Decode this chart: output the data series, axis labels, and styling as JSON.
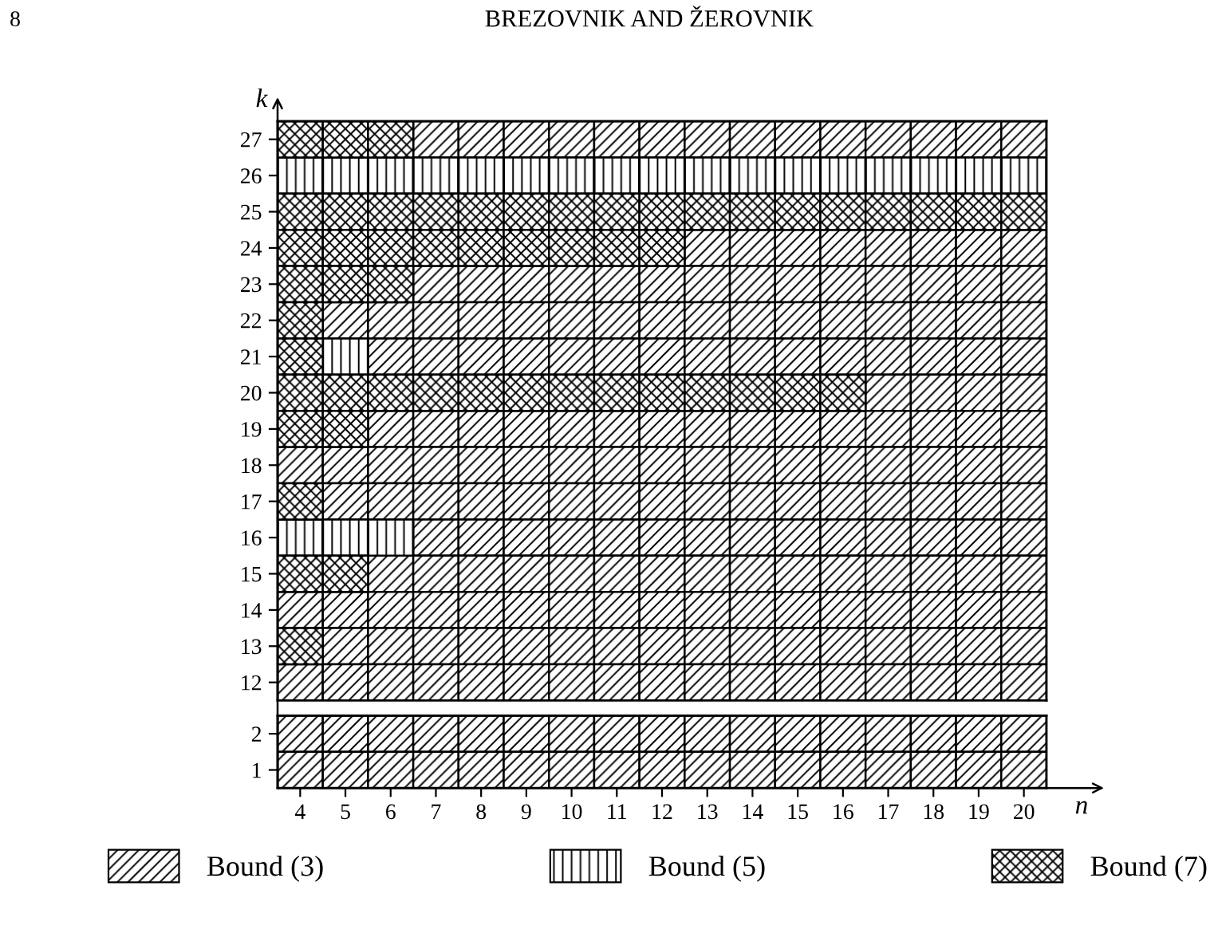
{
  "chart_data": [
    {
      "type": "scatter",
      "marker": "square",
      "ylabel": "k",
      "annotations": [
        "8",
        "BREZOVNIK AND ŽEROVNIK"
      ],
      "xlim": [
        3.5,
        20.5
      ],
      "xticks": [
        4,
        5,
        6,
        7,
        8,
        9,
        10,
        11,
        12,
        13,
        14,
        15,
        16,
        17,
        18,
        19,
        20
      ],
      "ylim": [
        11.5,
        27.5
      ],
      "yticks": [
        12,
        13,
        14,
        15,
        16,
        17,
        18,
        19,
        20,
        21,
        22,
        23,
        24,
        25,
        26,
        27
      ],
      "tick_labels": "y",
      "series": [
        {
          "color": "#000000",
          "x": [
            7,
            8,
            9,
            10,
            11,
            12,
            13,
            14,
            15,
            16,
            17,
            18,
            19,
            20,
            13,
            14,
            15,
            16,
            17,
            18,
            19,
            20,
            7,
            8,
            9,
            10,
            11,
            12,
            13,
            14,
            15,
            16,
            17,
            18,
            19,
            20,
            5,
            6,
            7,
            8,
            9,
            10,
            11,
            12,
            13,
            14,
            15,
            16,
            17,
            18,
            19,
            20,
            6,
            7,
            8,
            9,
            10,
            11,
            12,
            13,
            14,
            15,
            16,
            17,
            18,
            19,
            20,
            17,
            18,
            19,
            20,
            6,
            7,
            8,
            9,
            10,
            11,
            12,
            13,
            14,
            15,
            16,
            17,
            18,
            19,
            20,
            4,
            5,
            6,
            7,
            8,
            9,
            10,
            11,
            12,
            13,
            14,
            15,
            16,
            17,
            18,
            19,
            20,
            5,
            6,
            7,
            8,
            9,
            10,
            11,
            12,
            13,
            14,
            15,
            16,
            17,
            18,
            19,
            20,
            7,
            8,
            9,
            10,
            11,
            12,
            13,
            14,
            15,
            16,
            17,
            18,
            19,
            20,
            6,
            7,
            8,
            9,
            10,
            11,
            12,
            13,
            14,
            15,
            16,
            17,
            18,
            19,
            20,
            4,
            5,
            6,
            7,
            8,
            9,
            10,
            11,
            12,
            13,
            14,
            15,
            16,
            17,
            18,
            19,
            20,
            5,
            6,
            7,
            8,
            9,
            10,
            11,
            12,
            13,
            14,
            15,
            16,
            17,
            18,
            19,
            20,
            4,
            5,
            6,
            7,
            8,
            9,
            10,
            11,
            12,
            13,
            14,
            15,
            16,
            17,
            18,
            19,
            20
          ],
          "values": [
            27,
            27,
            27,
            27,
            27,
            27,
            27,
            27,
            27,
            27,
            27,
            27,
            27,
            27,
            24,
            24,
            24,
            24,
            24,
            24,
            24,
            24,
            23,
            23,
            23,
            23,
            23,
            23,
            23,
            23,
            23,
            23,
            23,
            23,
            23,
            23,
            22,
            22,
            22,
            22,
            22,
            22,
            22,
            22,
            22,
            22,
            22,
            22,
            22,
            22,
            22,
            22,
            21,
            21,
            21,
            21,
            21,
            21,
            21,
            21,
            21,
            21,
            21,
            21,
            21,
            21,
            21,
            20,
            20,
            20,
            20,
            19,
            19,
            19,
            19,
            19,
            19,
            19,
            19,
            19,
            19,
            19,
            19,
            19,
            19,
            19,
            18,
            18,
            18,
            18,
            18,
            18,
            18,
            18,
            18,
            18,
            18,
            18,
            18,
            18,
            18,
            18,
            18,
            17,
            17,
            17,
            17,
            17,
            17,
            17,
            17,
            17,
            17,
            17,
            17,
            17,
            17,
            17,
            17,
            16,
            16,
            16,
            16,
            16,
            16,
            16,
            16,
            16,
            16,
            16,
            16,
            16,
            16,
            15,
            15,
            15,
            15,
            15,
            15,
            15,
            15,
            15,
            15,
            15,
            15,
            15,
            15,
            15,
            14,
            14,
            14,
            14,
            14,
            14,
            14,
            14,
            14,
            14,
            14,
            14,
            14,
            14,
            14,
            14,
            14,
            13,
            13,
            13,
            13,
            13,
            13,
            13,
            13,
            13,
            13,
            13,
            13,
            13,
            13,
            13,
            13,
            12,
            12,
            12,
            12,
            12,
            12,
            12,
            12,
            12,
            12,
            12,
            12,
            12,
            12,
            12,
            12,
            12
          ]
        },
        {
          "color": "#000000",
          "x": [
            4,
            5,
            6,
            7,
            8,
            9,
            10,
            11,
            12,
            13,
            14,
            15,
            16,
            17,
            18,
            19,
            20,
            5,
            4,
            5,
            6
          ],
          "values": [
            26,
            26,
            26,
            26,
            26,
            26,
            26,
            26,
            26,
            26,
            26,
            26,
            26,
            26,
            26,
            26,
            26,
            21,
            16,
            16,
            16
          ]
        },
        {
          "color": "#000000",
          "x": [
            4,
            5,
            6,
            4,
            5,
            6,
            7,
            8,
            9,
            10,
            11,
            12,
            13,
            14,
            15,
            16,
            17,
            18,
            19,
            20,
            4,
            5,
            6,
            7,
            8,
            9,
            10,
            11,
            12,
            4,
            5,
            6,
            4,
            4,
            4,
            5,
            6,
            7,
            8,
            9,
            10,
            11,
            12,
            13,
            14,
            15,
            16,
            4,
            5,
            4,
            4,
            5,
            4
          ],
          "values": [
            27,
            27,
            27,
            25,
            25,
            25,
            25,
            25,
            25,
            25,
            25,
            25,
            25,
            25,
            25,
            25,
            25,
            25,
            25,
            25,
            24,
            24,
            24,
            24,
            24,
            24,
            24,
            24,
            24,
            23,
            23,
            23,
            22,
            21,
            20,
            20,
            20,
            20,
            20,
            20,
            20,
            20,
            20,
            20,
            20,
            20,
            20,
            19,
            19,
            17,
            15,
            15,
            13
          ]
        }
      ]
    },
    {
      "type": "scatter",
      "marker": "square",
      "xlabel": "n",
      "xlim": [
        3.5,
        20.5
      ],
      "xticks": [
        4,
        5,
        6,
        7,
        8,
        9,
        10,
        11,
        12,
        13,
        14,
        15,
        16,
        17,
        18,
        19,
        20
      ],
      "ylim": [
        0.5,
        2.5
      ],
      "yticks": [
        1,
        2
      ],
      "series": [
        {
          "name": "Bound (3)",
          "color": "#000000",
          "x": [
            4,
            5,
            6,
            7,
            8,
            9,
            10,
            11,
            12,
            13,
            14,
            15,
            16,
            17,
            18,
            19,
            20,
            4,
            5,
            6,
            7,
            8,
            9,
            10,
            11,
            12,
            13,
            14,
            15,
            16,
            17,
            18,
            19,
            20
          ],
          "values": [
            2,
            2,
            2,
            2,
            2,
            2,
            2,
            2,
            2,
            2,
            2,
            2,
            2,
            2,
            2,
            2,
            2,
            1,
            1,
            1,
            1,
            1,
            1,
            1,
            1,
            1,
            1,
            1,
            1,
            1,
            1,
            1,
            1,
            1
          ]
        },
        {
          "name": "Bound (5)",
          "color": "#000000"
        },
        {
          "name": "Bound (7)",
          "color": "#000000"
        }
      ],
      "legend": "bottom"
    }
  ]
}
